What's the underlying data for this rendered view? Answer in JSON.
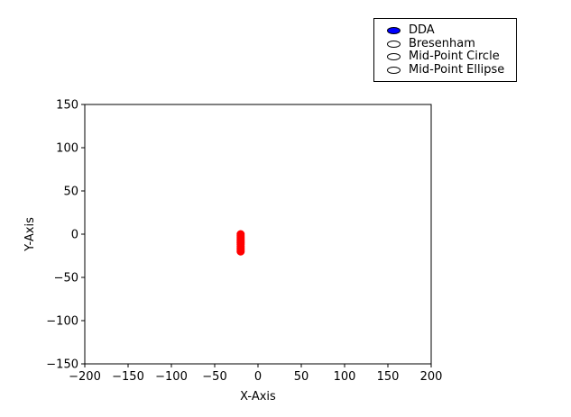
{
  "radio_panel": {
    "options": [
      {
        "label": "DDA",
        "selected": true
      },
      {
        "label": "Bresenham",
        "selected": false
      },
      {
        "label": "Mid-Point Circle",
        "selected": false
      },
      {
        "label": "Mid-Point Ellipse",
        "selected": false
      }
    ],
    "selected_color": "#0000ff"
  },
  "chart_data": {
    "type": "scatter",
    "xlabel": "X-Axis",
    "ylabel": "Y-Axis",
    "xlim": [
      -200,
      200
    ],
    "ylim": [
      -150,
      150
    ],
    "xticks": [
      -200,
      -150,
      -100,
      -50,
      0,
      50,
      100,
      150,
      200
    ],
    "yticks": [
      -150,
      -100,
      -50,
      0,
      50,
      100,
      150
    ],
    "grid": false,
    "series": [
      {
        "color": "#ff0000",
        "points": [
          [
            -20,
            0
          ],
          [
            -20,
            -2
          ],
          [
            -20,
            -4
          ],
          [
            -20,
            -6
          ],
          [
            -20,
            -8
          ],
          [
            -20,
            -10
          ],
          [
            -20,
            -12
          ],
          [
            -20,
            -14
          ],
          [
            -20,
            -16
          ],
          [
            -20,
            -18
          ],
          [
            -20,
            -20
          ]
        ]
      }
    ]
  }
}
